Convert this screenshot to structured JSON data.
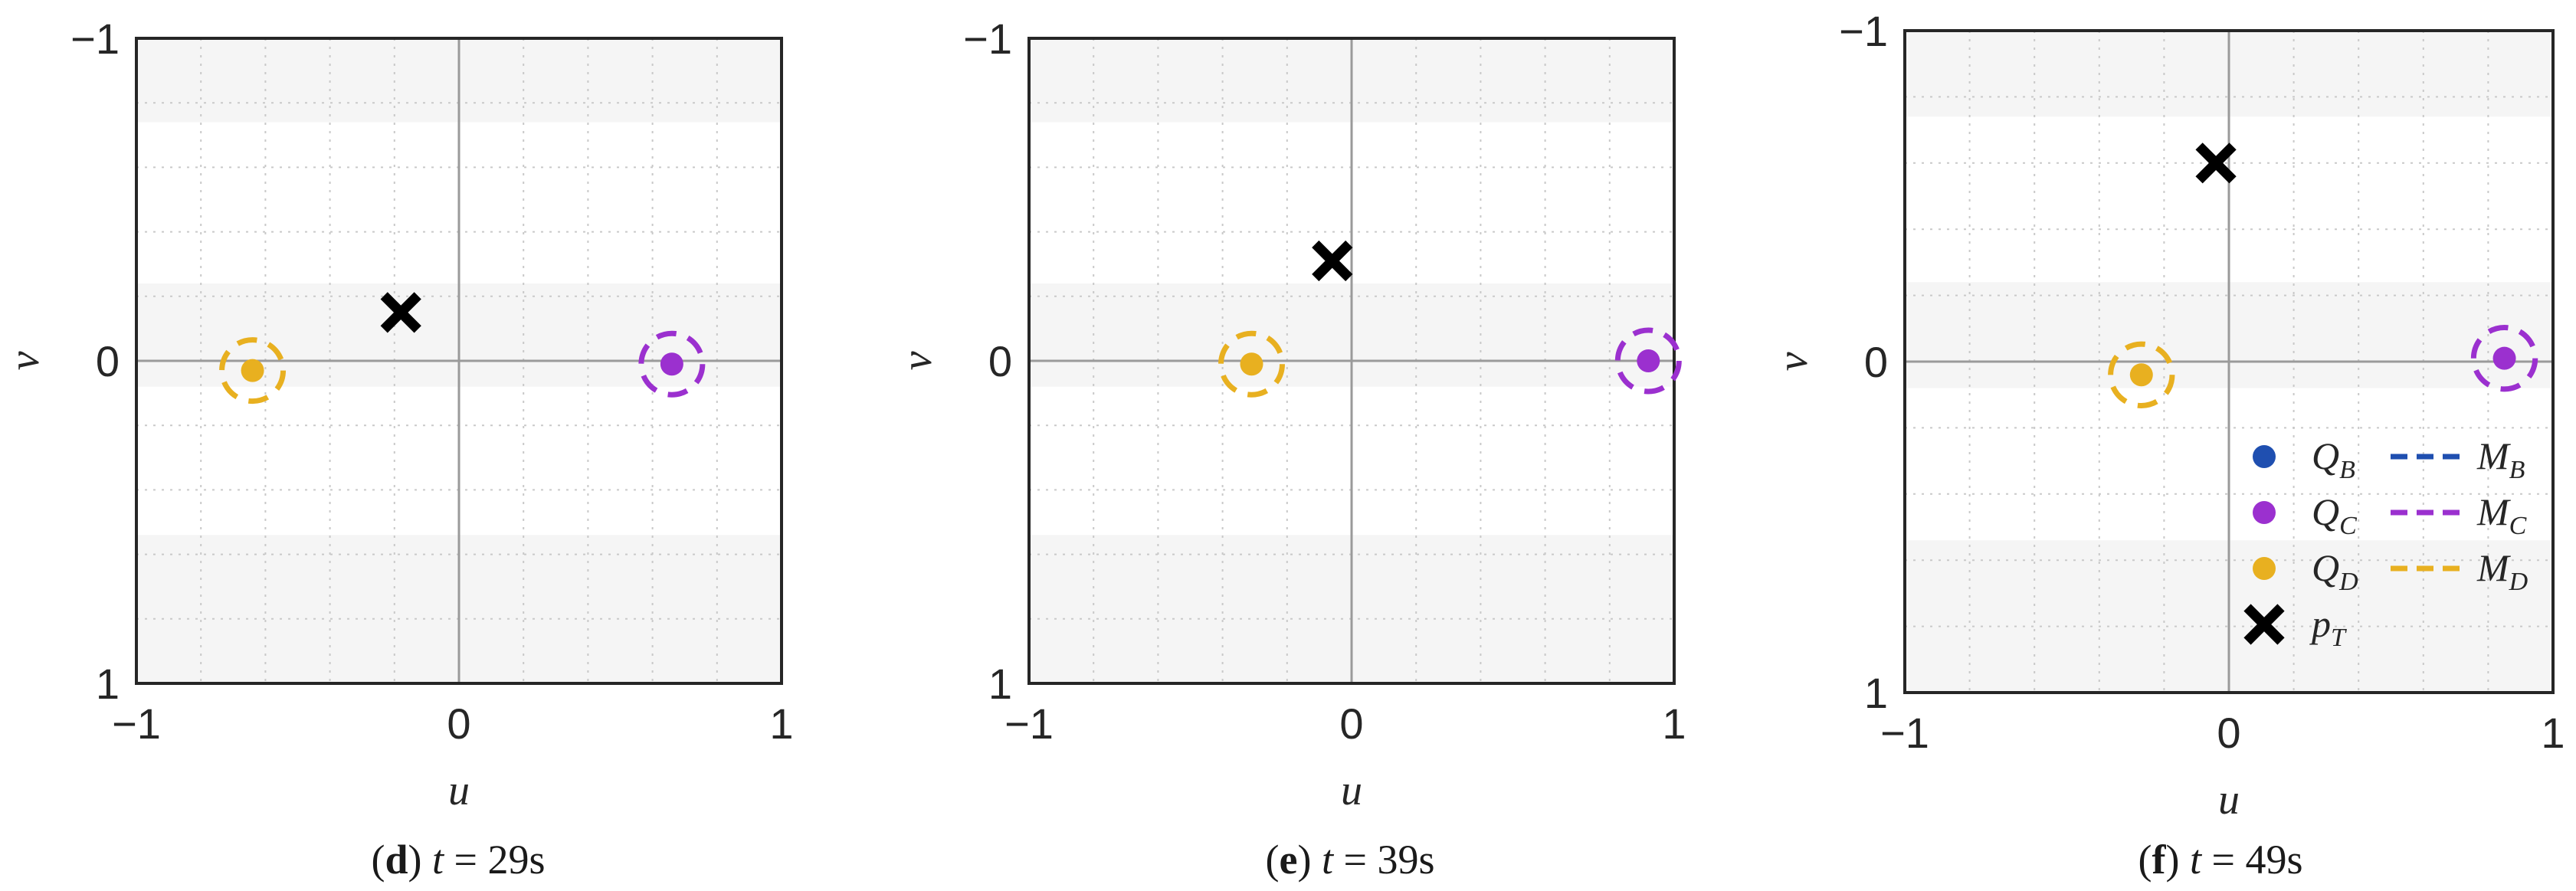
{
  "chart_data": [
    {
      "type": "scatter",
      "caption_label": "d",
      "caption_time": "t = 29s",
      "xlabel": "u",
      "ylabel": "v",
      "xlim": [
        -1,
        1
      ],
      "ylim": [
        -1,
        1
      ],
      "y_inverted": true,
      "xticks": [
        "−1",
        "0",
        "1"
      ],
      "yticks": [
        "−1",
        "0",
        "1"
      ],
      "grid": "dotted minor",
      "points": [
        {
          "series": "Q_D",
          "u": -0.64,
          "v": 0.03,
          "circle_radius": 0.095
        },
        {
          "series": "Q_C",
          "u": 0.66,
          "v": 0.01,
          "circle_radius": 0.095
        }
      ],
      "target": {
        "u": -0.18,
        "v": -0.15
      }
    },
    {
      "type": "scatter",
      "caption_label": "e",
      "caption_time": "t = 39s",
      "xlabel": "u",
      "ylabel": "v",
      "xlim": [
        -1,
        1
      ],
      "ylim": [
        -1,
        1
      ],
      "y_inverted": true,
      "xticks": [
        "−1",
        "0",
        "1"
      ],
      "yticks": [
        "−1",
        "0",
        "1"
      ],
      "grid": "dotted minor",
      "points": [
        {
          "series": "Q_D",
          "u": -0.31,
          "v": 0.01,
          "circle_radius": 0.095
        },
        {
          "series": "Q_C",
          "u": 0.92,
          "v": 0.0,
          "circle_radius": 0.095
        }
      ],
      "target": {
        "u": -0.06,
        "v": -0.31
      }
    },
    {
      "type": "scatter",
      "caption_label": "f",
      "caption_time": "t = 49s",
      "xlabel": "u",
      "ylabel": "v",
      "xlim": [
        -1,
        1
      ],
      "ylim": [
        -1,
        1
      ],
      "y_inverted": true,
      "xticks": [
        "−1",
        "0",
        "1"
      ],
      "yticks": [
        "−1",
        "0",
        "1"
      ],
      "grid": "dotted minor",
      "points": [
        {
          "series": "Q_D",
          "u": -0.27,
          "v": 0.04,
          "circle_radius": 0.095
        },
        {
          "series": "Q_C",
          "u": 0.85,
          "v": -0.01,
          "circle_radius": 0.095
        }
      ],
      "target": {
        "u": -0.04,
        "v": -0.6
      },
      "legend": {
        "placement": "bottom-right",
        "entries": [
          {
            "marker": "Q",
            "marker_sub": "B",
            "line": "M",
            "line_sub": "B",
            "color": "#1f4fb0"
          },
          {
            "marker": "Q",
            "marker_sub": "C",
            "line": "M",
            "line_sub": "C",
            "color": "#9b30cf"
          },
          {
            "marker": "Q",
            "marker_sub": "D",
            "line": "M",
            "line_sub": "D",
            "color": "#e8b020"
          },
          {
            "marker": "p",
            "marker_sub": "T",
            "line": "",
            "line_sub": "",
            "color": "#000000"
          }
        ]
      }
    }
  ],
  "colors": {
    "Q_B": "#1f4fb0",
    "Q_C": "#9b30cf",
    "Q_D": "#e8b020",
    "target": "#000000",
    "band": "#f5f5f5",
    "grid": "#c9c9c9",
    "zero_line": "#9a9a9a"
  }
}
